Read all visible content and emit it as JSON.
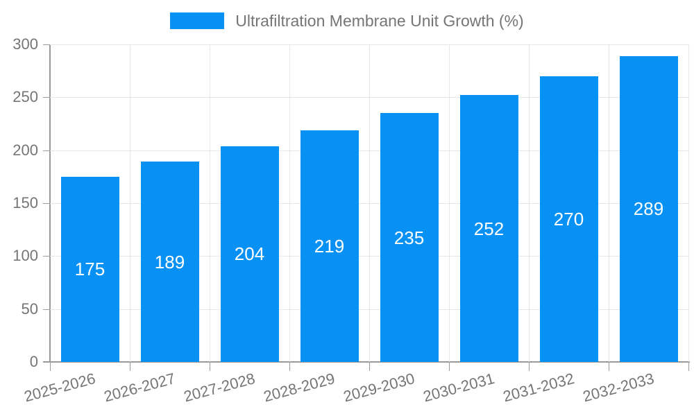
{
  "chart_data": {
    "type": "bar",
    "title": "Ultrafiltration Membrane Unit Growth (%)",
    "categories": [
      "2025-2026",
      "2026-2027",
      "2027-2028",
      "2028-2029",
      "2029-2030",
      "2030-2031",
      "2031-2032",
      "2032-2033"
    ],
    "values": [
      175,
      189,
      204,
      219,
      235,
      252,
      270,
      289
    ],
    "xlabel": "",
    "ylabel": "",
    "ylim": [
      0,
      300
    ],
    "yticks": [
      0,
      50,
      100,
      150,
      200,
      250,
      300
    ],
    "grid": "on",
    "legend_position": "top-center",
    "value_labels": "inside-center",
    "colors": {
      "bar": "#0891f5",
      "grid": "#e6e6e6",
      "axis": "#9a9a9a",
      "text": "#757575",
      "value_label": "#ffffff"
    }
  }
}
